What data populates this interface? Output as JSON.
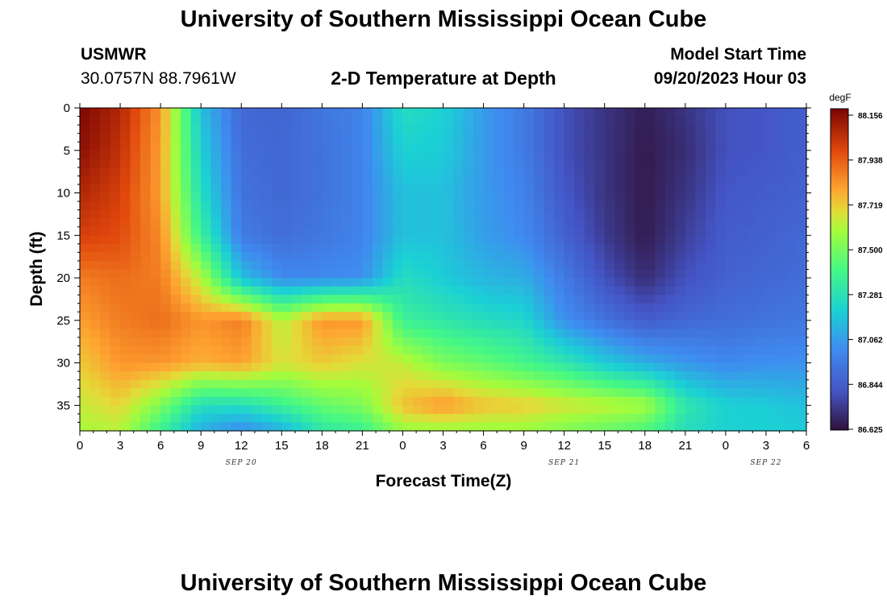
{
  "header": {
    "title": "University of Southern Mississippi Ocean Cube",
    "station": "USMWR",
    "coords": "30.0757N  88.7961W",
    "plot_title": "2-D Temperature at Depth",
    "model_label": "Model Start Time",
    "model_time": "09/20/2023 Hour 03"
  },
  "footer": {
    "title": "University of Southern Mississippi Ocean Cube"
  },
  "chart_data": {
    "type": "heatmap",
    "title": "2-D Temperature at Depth",
    "xlabel": "Forecast Time(Z)",
    "ylabel": "Depth (ft)",
    "units": "degF",
    "x_tick_labels": [
      "0",
      "3",
      "6",
      "9",
      "12",
      "15",
      "18",
      "21",
      "0",
      "3",
      "6",
      "9",
      "12",
      "15",
      "18",
      "21",
      "0",
      "3",
      "6"
    ],
    "x_date_labels": [
      "SEP 20",
      "SEP 21",
      "SEP 22"
    ],
    "x_range_hours": [
      0,
      54
    ],
    "y_tick_labels": [
      "0",
      "5",
      "10",
      "15",
      "20",
      "25",
      "30",
      "35"
    ],
    "y_range_ft": [
      0,
      38
    ],
    "y_inverted": true,
    "colorbar": {
      "min": 86.625,
      "max": 88.156,
      "tick_labels": [
        "88.156",
        "87.938",
        "87.719",
        "87.500",
        "87.281",
        "87.062",
        "86.844",
        "86.625"
      ],
      "colormap": "turbo"
    },
    "hours": [
      0,
      3,
      6,
      9,
      12,
      15,
      18,
      21,
      24,
      27,
      30,
      33,
      36,
      39,
      42,
      45,
      48,
      51,
      54
    ],
    "depths": [
      0,
      5,
      10,
      15,
      20,
      25,
      30,
      35,
      38
    ],
    "values": [
      [
        88.15,
        88.12,
        88.05,
        87.98,
        87.85,
        87.78,
        87.7,
        87.62,
        87.58
      ],
      [
        88.05,
        88.02,
        87.98,
        87.95,
        87.88,
        87.85,
        87.8,
        87.68,
        87.6
      ],
      [
        87.8,
        87.78,
        87.78,
        87.82,
        87.85,
        87.88,
        87.8,
        87.5,
        87.35
      ],
      [
        87.15,
        87.2,
        87.25,
        87.35,
        87.6,
        87.8,
        87.75,
        87.25,
        87.1
      ],
      [
        86.88,
        86.9,
        86.92,
        86.95,
        87.15,
        87.85,
        87.78,
        87.25,
        87.0
      ],
      [
        86.87,
        86.88,
        86.88,
        86.9,
        87.0,
        87.6,
        87.65,
        87.35,
        87.1
      ],
      [
        86.93,
        86.92,
        86.92,
        86.94,
        87.0,
        87.8,
        87.7,
        87.45,
        87.3
      ],
      [
        86.98,
        86.98,
        86.98,
        86.98,
        87.02,
        87.8,
        87.65,
        87.5,
        87.35
      ],
      [
        87.25,
        87.2,
        87.15,
        87.15,
        87.25,
        87.35,
        87.62,
        87.72,
        87.55
      ],
      [
        87.2,
        87.18,
        87.15,
        87.15,
        87.18,
        87.3,
        87.5,
        87.8,
        87.55
      ],
      [
        87.05,
        87.05,
        87.05,
        87.06,
        87.12,
        87.25,
        87.45,
        87.72,
        87.55
      ],
      [
        86.95,
        86.95,
        86.98,
        87.0,
        87.1,
        87.22,
        87.38,
        87.7,
        87.55
      ],
      [
        86.8,
        86.8,
        86.82,
        86.86,
        86.95,
        87.02,
        87.3,
        87.65,
        87.5
      ],
      [
        86.72,
        86.72,
        86.72,
        86.74,
        86.8,
        86.92,
        87.18,
        87.62,
        87.45
      ],
      [
        86.66,
        86.65,
        86.65,
        86.65,
        86.7,
        86.84,
        87.1,
        87.58,
        87.4
      ],
      [
        86.72,
        86.7,
        86.72,
        86.75,
        86.8,
        86.88,
        87.04,
        87.3,
        87.25
      ],
      [
        86.8,
        86.8,
        86.82,
        86.84,
        86.86,
        86.9,
        87.0,
        87.2,
        87.2
      ],
      [
        86.82,
        86.82,
        86.84,
        86.86,
        86.88,
        86.92,
        87.02,
        87.18,
        87.2
      ],
      [
        86.85,
        86.85,
        86.86,
        86.88,
        86.9,
        86.94,
        87.02,
        87.15,
        87.18
      ]
    ]
  }
}
